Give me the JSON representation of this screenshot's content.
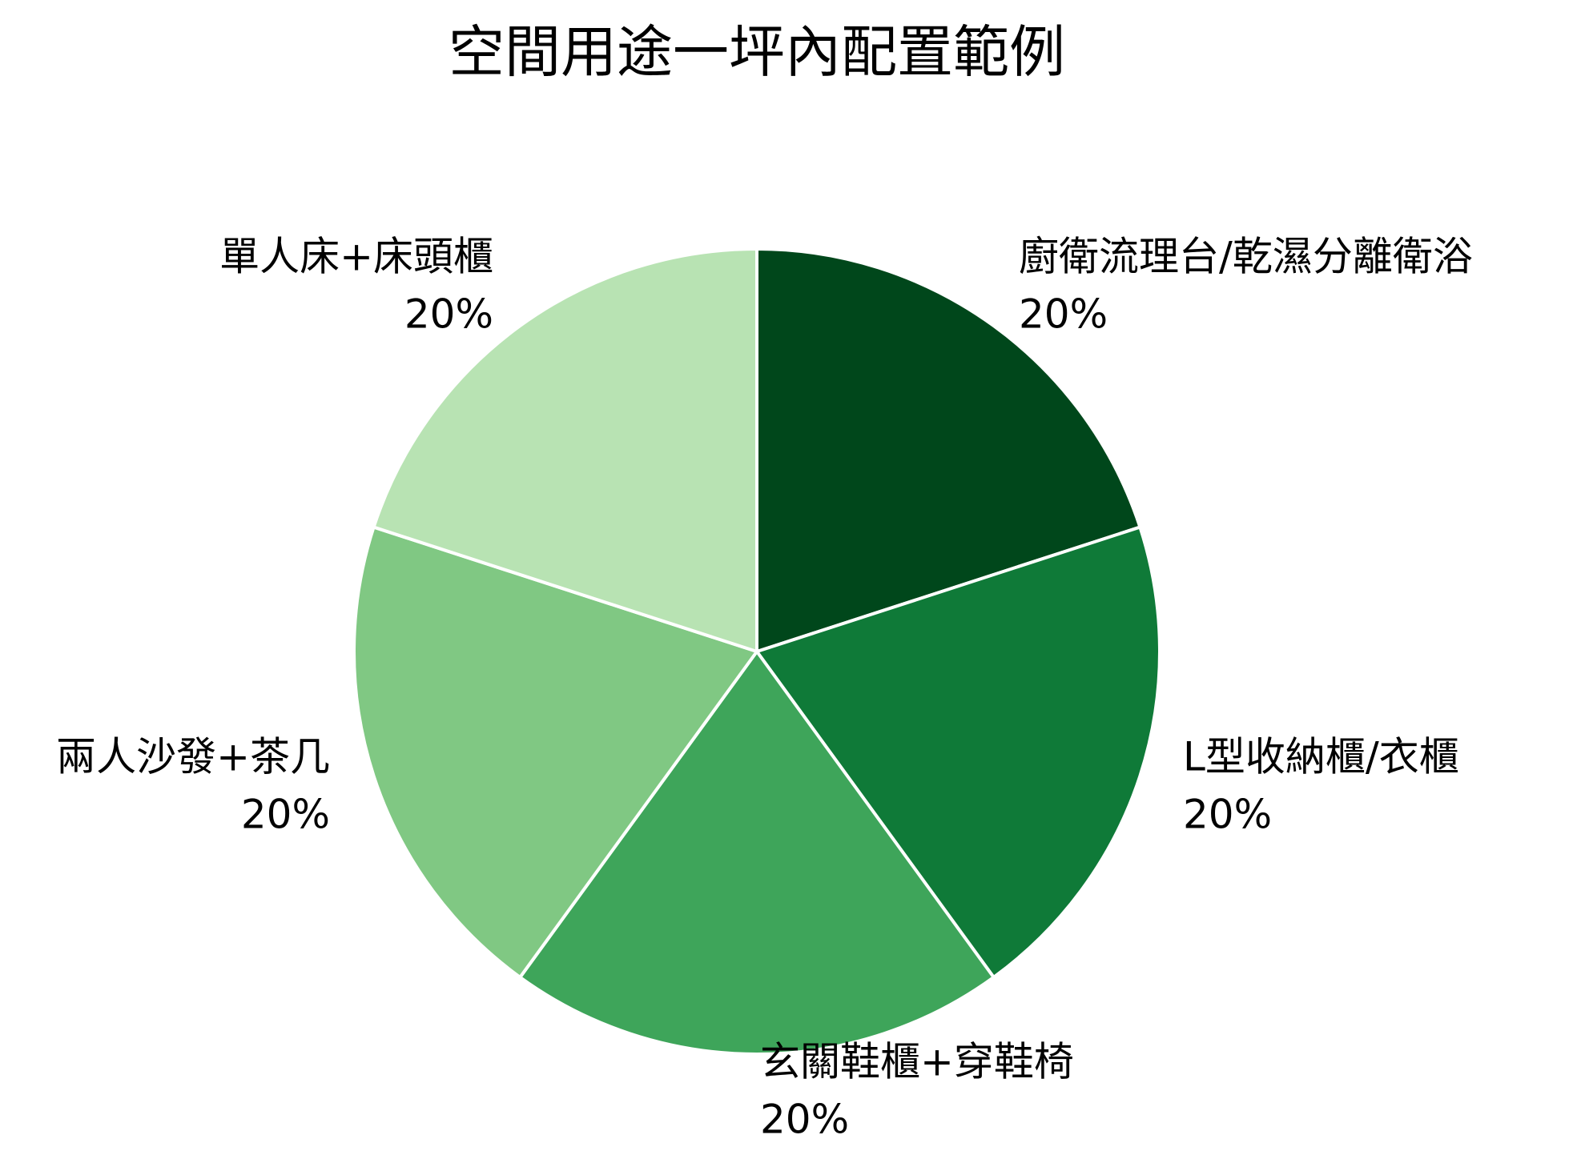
{
  "chart_data": {
    "type": "pie",
    "title": "空間用途一坪內配置範例",
    "categories": [
      "廚衛流理台/乾濕分離衛浴",
      "L型收納櫃/衣櫃",
      "玄關鞋櫃+穿鞋椅",
      "兩人沙發+茶几",
      "單人床+床頭櫃"
    ],
    "values": [
      20,
      20,
      20,
      20,
      20
    ],
    "value_labels": [
      "20%",
      "20%",
      "20%",
      "20%",
      "20%"
    ],
    "colors": [
      "#00471b",
      "#0f7a38",
      "#3ea55a",
      "#80c883",
      "#b8e3b3"
    ]
  }
}
